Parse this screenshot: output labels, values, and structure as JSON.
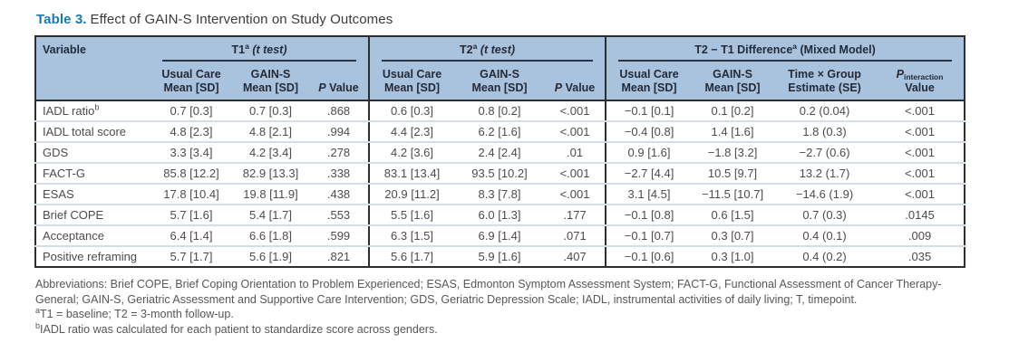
{
  "title": {
    "label": "Table 3.",
    "text": "Effect of GAIN-S Intervention on Study Outcomes"
  },
  "table": {
    "groups": [
      {
        "pre": "T1",
        "sup": "a",
        "post": " (t test)"
      },
      {
        "pre": "T2",
        "sup": "a",
        "post": " (t test)"
      },
      {
        "pre": "T2 − T1 Difference",
        "sup": "a",
        "post": " (Mixed Model)"
      }
    ],
    "headers": {
      "variable": "Variable",
      "usual_care": {
        "line1": "Usual Care",
        "line2": "Mean [SD]"
      },
      "gain_s": {
        "line1": "GAIN-S",
        "line2": "Mean [SD]"
      },
      "p_value": {
        "p": "P",
        "rest": " Value"
      },
      "time_group": {
        "line1": "Time × Group",
        "line2": "Estimate (SE)"
      },
      "p_interaction": {
        "p": "P",
        "sub": "interaction",
        "line2": "Value"
      }
    },
    "rows": [
      {
        "label": "IADL ratio",
        "sup": "b",
        "values": [
          "0.7 [0.3]",
          "0.7 [0.3]",
          ".868",
          "0.6 [0.3]",
          "0.8 [0.2]",
          "<.001",
          "−0.1 [0.1]",
          "0.1 [0.2]",
          "0.2 (0.04)",
          "<.001"
        ]
      },
      {
        "label": "IADL total score",
        "values": [
          "4.8 [2.3]",
          "4.8 [2.1]",
          ".994",
          "4.4 [2.3]",
          "6.2 [1.6]",
          "<.001",
          "−0.4 [0.8]",
          "1.4 [1.6]",
          "1.8 (0.3)",
          "<.001"
        ]
      },
      {
        "label": "GDS",
        "values": [
          "3.3 [3.4]",
          "4.2 [3.4]",
          ".278",
          "4.2 [3.6]",
          "2.4 [2.4]",
          ".01",
          "0.9 [1.6]",
          "−1.8 [3.2]",
          "−2.7 (0.6)",
          "<.001"
        ]
      },
      {
        "label": "FACT-G",
        "values": [
          "85.8 [12.2]",
          "82.9 [13.3]",
          ".338",
          "83.1 [13.4]",
          "93.5 [10.2]",
          "<.001",
          "−2.7 [4.4]",
          "10.5 [9.7]",
          "13.2 (1.7)",
          "<.001"
        ]
      },
      {
        "label": "ESAS",
        "values": [
          "17.8 [10.4]",
          "19.8 [11.9]",
          ".438",
          "20.9 [11.2]",
          "8.3 [7.8]",
          "<.001",
          "3.1 [4.5]",
          "−11.5 [10.7]",
          "−14.6 (1.9)",
          "<.001"
        ]
      },
      {
        "label": "Brief COPE",
        "values": [
          "5.7 [1.6]",
          "5.4 [1.7]",
          ".553",
          "5.5 [1.6]",
          "6.0 [1.3]",
          ".177",
          "−0.1 [0.8]",
          "0.6 [1.5]",
          "0.7 (0.3)",
          ".0145"
        ]
      },
      {
        "label": "Acceptance",
        "values": [
          "6.4 [1.4]",
          "6.6 [1.8]",
          ".599",
          "6.3 [1.5]",
          "6.9 [1.4]",
          ".071",
          "−0.1 [0.7]",
          "0.3 [0.7]",
          "0.4 (0.1)",
          ".009"
        ]
      },
      {
        "label": "Positive reframing",
        "values": [
          "5.7 [1.7]",
          "5.6 [1.9]",
          ".821",
          "5.6 [1.7]",
          "5.9 [1.6]",
          ".407",
          "−0.1 [0.6]",
          "0.3 [1.0]",
          "0.4 (0.2)",
          ".035"
        ]
      }
    ]
  },
  "footnotes": {
    "abbreviations": "Abbreviations: Brief COPE, Brief Coping Orientation to Problem Experienced; ESAS, Edmonton Symptom Assessment System; FACT-G, Functional Assessment of Cancer Therapy-General; GAIN-S, Geriatric Assessment and Supportive Care Intervention; GDS, Geriatric Depression Scale; IADL, instrumental activities of daily living; T, timepoint.",
    "note_a": {
      "sup": "a",
      "text": "T1 = baseline; T2 = 3-month follow-up."
    },
    "note_b": {
      "sup": "b",
      "text": "IADL ratio was calculated for each patient to standardize score across genders."
    }
  },
  "colors": {
    "header_bg": "#a9c2de",
    "title_accent": "#1878b8",
    "border_dark": "#2e2e2e",
    "row_divider": "#d4deea"
  }
}
